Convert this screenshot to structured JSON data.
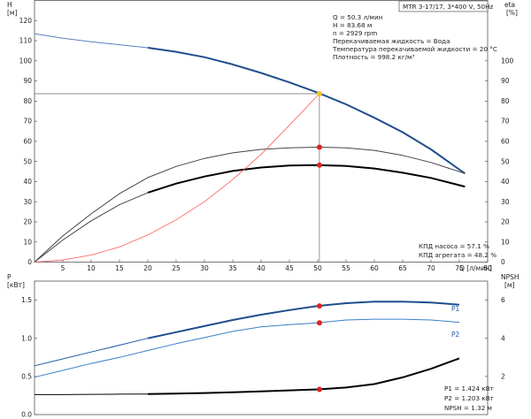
{
  "title_box": "MTR 3-17/17, 3*400 V, 50Hz",
  "info_top": [
    "Q = 50.3 л/мин",
    "H = 83.68 м",
    "n = 2929 rpm",
    "Перекачиваемая жидкость = Вода",
    "Температура перекачиваемой жидкости = 20 °C",
    "Плотность = 998.2 кг/м³"
  ],
  "info_eff": [
    "КПД насоса = 57.1 %",
    "КПД агрегата = 48.2 %"
  ],
  "info_power": [
    "P1 = 1.424 кВт",
    "P2 = 1.203 кВт",
    "NPSH = 1.32 м"
  ],
  "chart_data": [
    {
      "type": "line",
      "title": "MTR 3-17/17, 3*400 V, 50Hz",
      "xlabel": "Q [л/мин]",
      "ylabel": "H [м]",
      "y2label": "eta [%]",
      "xlim": [
        0,
        80
      ],
      "ylim": [
        0,
        130
      ],
      "y2lim": [
        0,
        130
      ],
      "x_ticks": [
        5,
        10,
        15,
        20,
        25,
        30,
        35,
        40,
        45,
        50,
        55,
        60,
        65,
        70,
        75,
        80
      ],
      "y_ticks": [
        0,
        10,
        20,
        30,
        40,
        50,
        60,
        70,
        80,
        90,
        100,
        110,
        120
      ],
      "y2_ticks": [
        0,
        10,
        20,
        30,
        40,
        50,
        60,
        70,
        80,
        90,
        100
      ],
      "grid": false,
      "duty_point": {
        "x": 50.3,
        "y": 83.68
      },
      "series": [
        {
          "key": "H_thin",
          "axis": "y",
          "color": "#5a7fbf",
          "width": 1,
          "x": [
            0,
            5,
            10,
            15,
            20
          ],
          "y": [
            113.5,
            111.2,
            109.5,
            108,
            106.5
          ]
        },
        {
          "key": "H",
          "axis": "y",
          "color": "#1f4e8c",
          "width": 2,
          "x": [
            20,
            25,
            30,
            35,
            40,
            45,
            50,
            55,
            60,
            65,
            70,
            76
          ],
          "y": [
            106.5,
            104.5,
            101.8,
            98.2,
            94,
            89.3,
            84.2,
            78.4,
            71.7,
            64.5,
            56,
            44
          ]
        },
        {
          "key": "eta_pump",
          "axis": "y2",
          "color": "#444444",
          "width": 1,
          "x": [
            0,
            5,
            10,
            15,
            20,
            25,
            30,
            35,
            40,
            45,
            50,
            55,
            60,
            65,
            70,
            76
          ],
          "y": [
            0,
            13,
            24,
            34,
            42,
            47.5,
            51.5,
            54.3,
            56,
            56.8,
            57.1,
            56.8,
            55.5,
            53,
            49.5,
            44
          ]
        },
        {
          "key": "eta_unit_thin",
          "axis": "y2",
          "color": "#444444",
          "width": 1,
          "x": [
            0,
            5,
            10,
            15,
            20
          ],
          "y": [
            0,
            11,
            20.5,
            28.5,
            34.5
          ]
        },
        {
          "key": "eta_unit",
          "axis": "y2",
          "color": "#000000",
          "width": 2,
          "x": [
            20,
            25,
            30,
            35,
            40,
            45,
            50,
            55,
            60,
            65,
            70,
            76
          ],
          "y": [
            34.5,
            39,
            42.5,
            45.3,
            47,
            48,
            48.2,
            47.8,
            46.5,
            44.4,
            41.8,
            37.5
          ]
        },
        {
          "key": "system",
          "axis": "y",
          "color": "#ff5a5a",
          "width": 0.8,
          "x": [
            0,
            5,
            10,
            15,
            20,
            25,
            30,
            35,
            40,
            45,
            50.3
          ],
          "y": [
            0,
            1,
            3.5,
            7.5,
            13.5,
            21,
            30,
            41,
            53.5,
            68,
            83.68
          ]
        }
      ],
      "points": [
        {
          "axis": "y2",
          "x": 50.3,
          "y": 57.1,
          "color": "#e02020"
        },
        {
          "axis": "y2",
          "x": 50.3,
          "y": 48.2,
          "color": "#e02020"
        },
        {
          "axis": "y",
          "x": 50.3,
          "y": 83.68,
          "color": "#f5c023"
        }
      ]
    },
    {
      "type": "line",
      "xlabel": "",
      "ylabel": "P [кВт]",
      "y2label": "NPSH [м]",
      "xlim": [
        0,
        80
      ],
      "ylim": [
        0,
        1.75
      ],
      "y2lim": [
        0,
        7
      ],
      "y_ticks": [
        0,
        0.5,
        1.0,
        1.5
      ],
      "y_tick_labels": [
        "0.0",
        "0.5",
        "1.0",
        "1.5"
      ],
      "y2_ticks": [
        2,
        4,
        6
      ],
      "grid": false,
      "legend": [
        "P1",
        "P2"
      ],
      "series": [
        {
          "key": "P1_thin",
          "axis": "y",
          "color": "#1f5aa8",
          "width": 1,
          "x": [
            0,
            5,
            10,
            15,
            20
          ],
          "y": [
            0.64,
            0.73,
            0.82,
            0.91,
            1.0
          ]
        },
        {
          "key": "P1",
          "axis": "y",
          "color": "#1f4e8c",
          "width": 2,
          "x": [
            20,
            25,
            30,
            35,
            40,
            45,
            50,
            55,
            60,
            65,
            70,
            75
          ],
          "y": [
            1.0,
            1.08,
            1.16,
            1.24,
            1.31,
            1.37,
            1.424,
            1.46,
            1.48,
            1.48,
            1.47,
            1.44
          ]
        },
        {
          "key": "P2",
          "axis": "y",
          "color": "#3a7fc8",
          "width": 1,
          "x": [
            0,
            5,
            10,
            15,
            20,
            25,
            30,
            35,
            40,
            45,
            50,
            55,
            60,
            65,
            70,
            75
          ],
          "y": [
            0.49,
            0.58,
            0.67,
            0.75,
            0.84,
            0.93,
            1.01,
            1.09,
            1.15,
            1.18,
            1.203,
            1.24,
            1.25,
            1.25,
            1.24,
            1.21
          ]
        },
        {
          "key": "NPSH_thin",
          "axis": "y2",
          "color": "#000000",
          "width": 1,
          "x": [
            0,
            5,
            10,
            15,
            20
          ],
          "y": [
            1.05,
            1.05,
            1.06,
            1.07,
            1.08
          ]
        },
        {
          "key": "NPSH",
          "axis": "y2",
          "color": "#000000",
          "width": 2,
          "x": [
            20,
            25,
            30,
            35,
            40,
            45,
            50,
            55,
            60,
            65,
            70,
            75
          ],
          "y": [
            1.08,
            1.1,
            1.13,
            1.17,
            1.22,
            1.27,
            1.32,
            1.42,
            1.6,
            1.95,
            2.4,
            2.95
          ]
        }
      ],
      "points": [
        {
          "axis": "y",
          "x": 50.3,
          "y": 1.424,
          "color": "#e02020"
        },
        {
          "axis": "y",
          "x": 50.3,
          "y": 1.203,
          "color": "#e02020"
        },
        {
          "axis": "y2",
          "x": 50.3,
          "y": 1.32,
          "color": "#e02020"
        }
      ]
    }
  ]
}
